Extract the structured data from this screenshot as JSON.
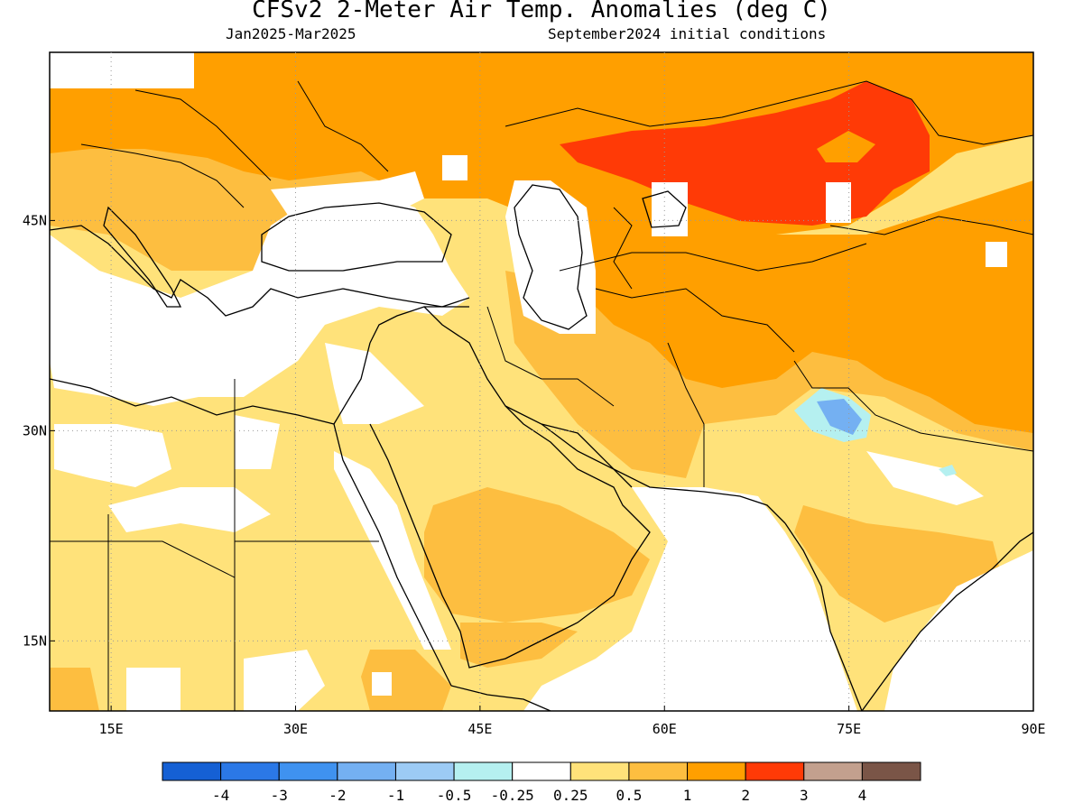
{
  "title": "CFSv2 2-Meter Air Temp. Anomalies (deg C)",
  "subtitle_left": "Jan2025-Mar2025",
  "subtitle_right": "September2024 initial conditions",
  "map": {
    "lon_range": [
      10,
      90
    ],
    "lat_range": [
      10,
      57
    ],
    "lon_ticks": [
      {
        "value": 15,
        "label": "15E"
      },
      {
        "value": 30,
        "label": "30E"
      },
      {
        "value": 45,
        "label": "45E"
      },
      {
        "value": 60,
        "label": "60E"
      },
      {
        "value": 75,
        "label": "75E"
      },
      {
        "value": 90,
        "label": "90E"
      }
    ],
    "lat_ticks": [
      {
        "value": 45,
        "label": "45N"
      },
      {
        "value": 30,
        "label": "30N"
      },
      {
        "value": 15,
        "label": "15N"
      }
    ],
    "gridlines": "dotted"
  },
  "colorbar": {
    "colors": [
      "#1560d4",
      "#2b78e6",
      "#3f92f0",
      "#74b0f2",
      "#9ccbf5",
      "#b5f0f0",
      "#ffffff",
      "#ffe27a",
      "#fdbe40",
      "#ff9f00",
      "#ff3a06",
      "#c3a08e",
      "#7a5547"
    ],
    "labels": [
      "-4",
      "-3",
      "-2",
      "-1",
      "-0.5",
      "-0.25",
      "0.25",
      "0.5",
      "1",
      "2",
      "3",
      "4"
    ]
  },
  "anomaly_regions": [
    {
      "category": "0.25 to 0.5",
      "color": "#ffe27a",
      "area": "North Africa, Arabian Peninsula, Iran, India"
    },
    {
      "category": "0.5 to 1",
      "color": "#fdbe40",
      "area": "Central Arabia, Afghanistan, northern India, Balkans"
    },
    {
      "category": "1 to 2",
      "color": "#ff9f00",
      "area": "Europe, Central Asia, western China"
    },
    {
      "category": "2 to 3",
      "color": "#ff3a06",
      "area": "Kazakhstan, southern Siberia, western Mongolia"
    },
    {
      "category": "-0.5 to -1",
      "color": "#9ccbf5",
      "area": "northwest India / Punjab"
    }
  ]
}
